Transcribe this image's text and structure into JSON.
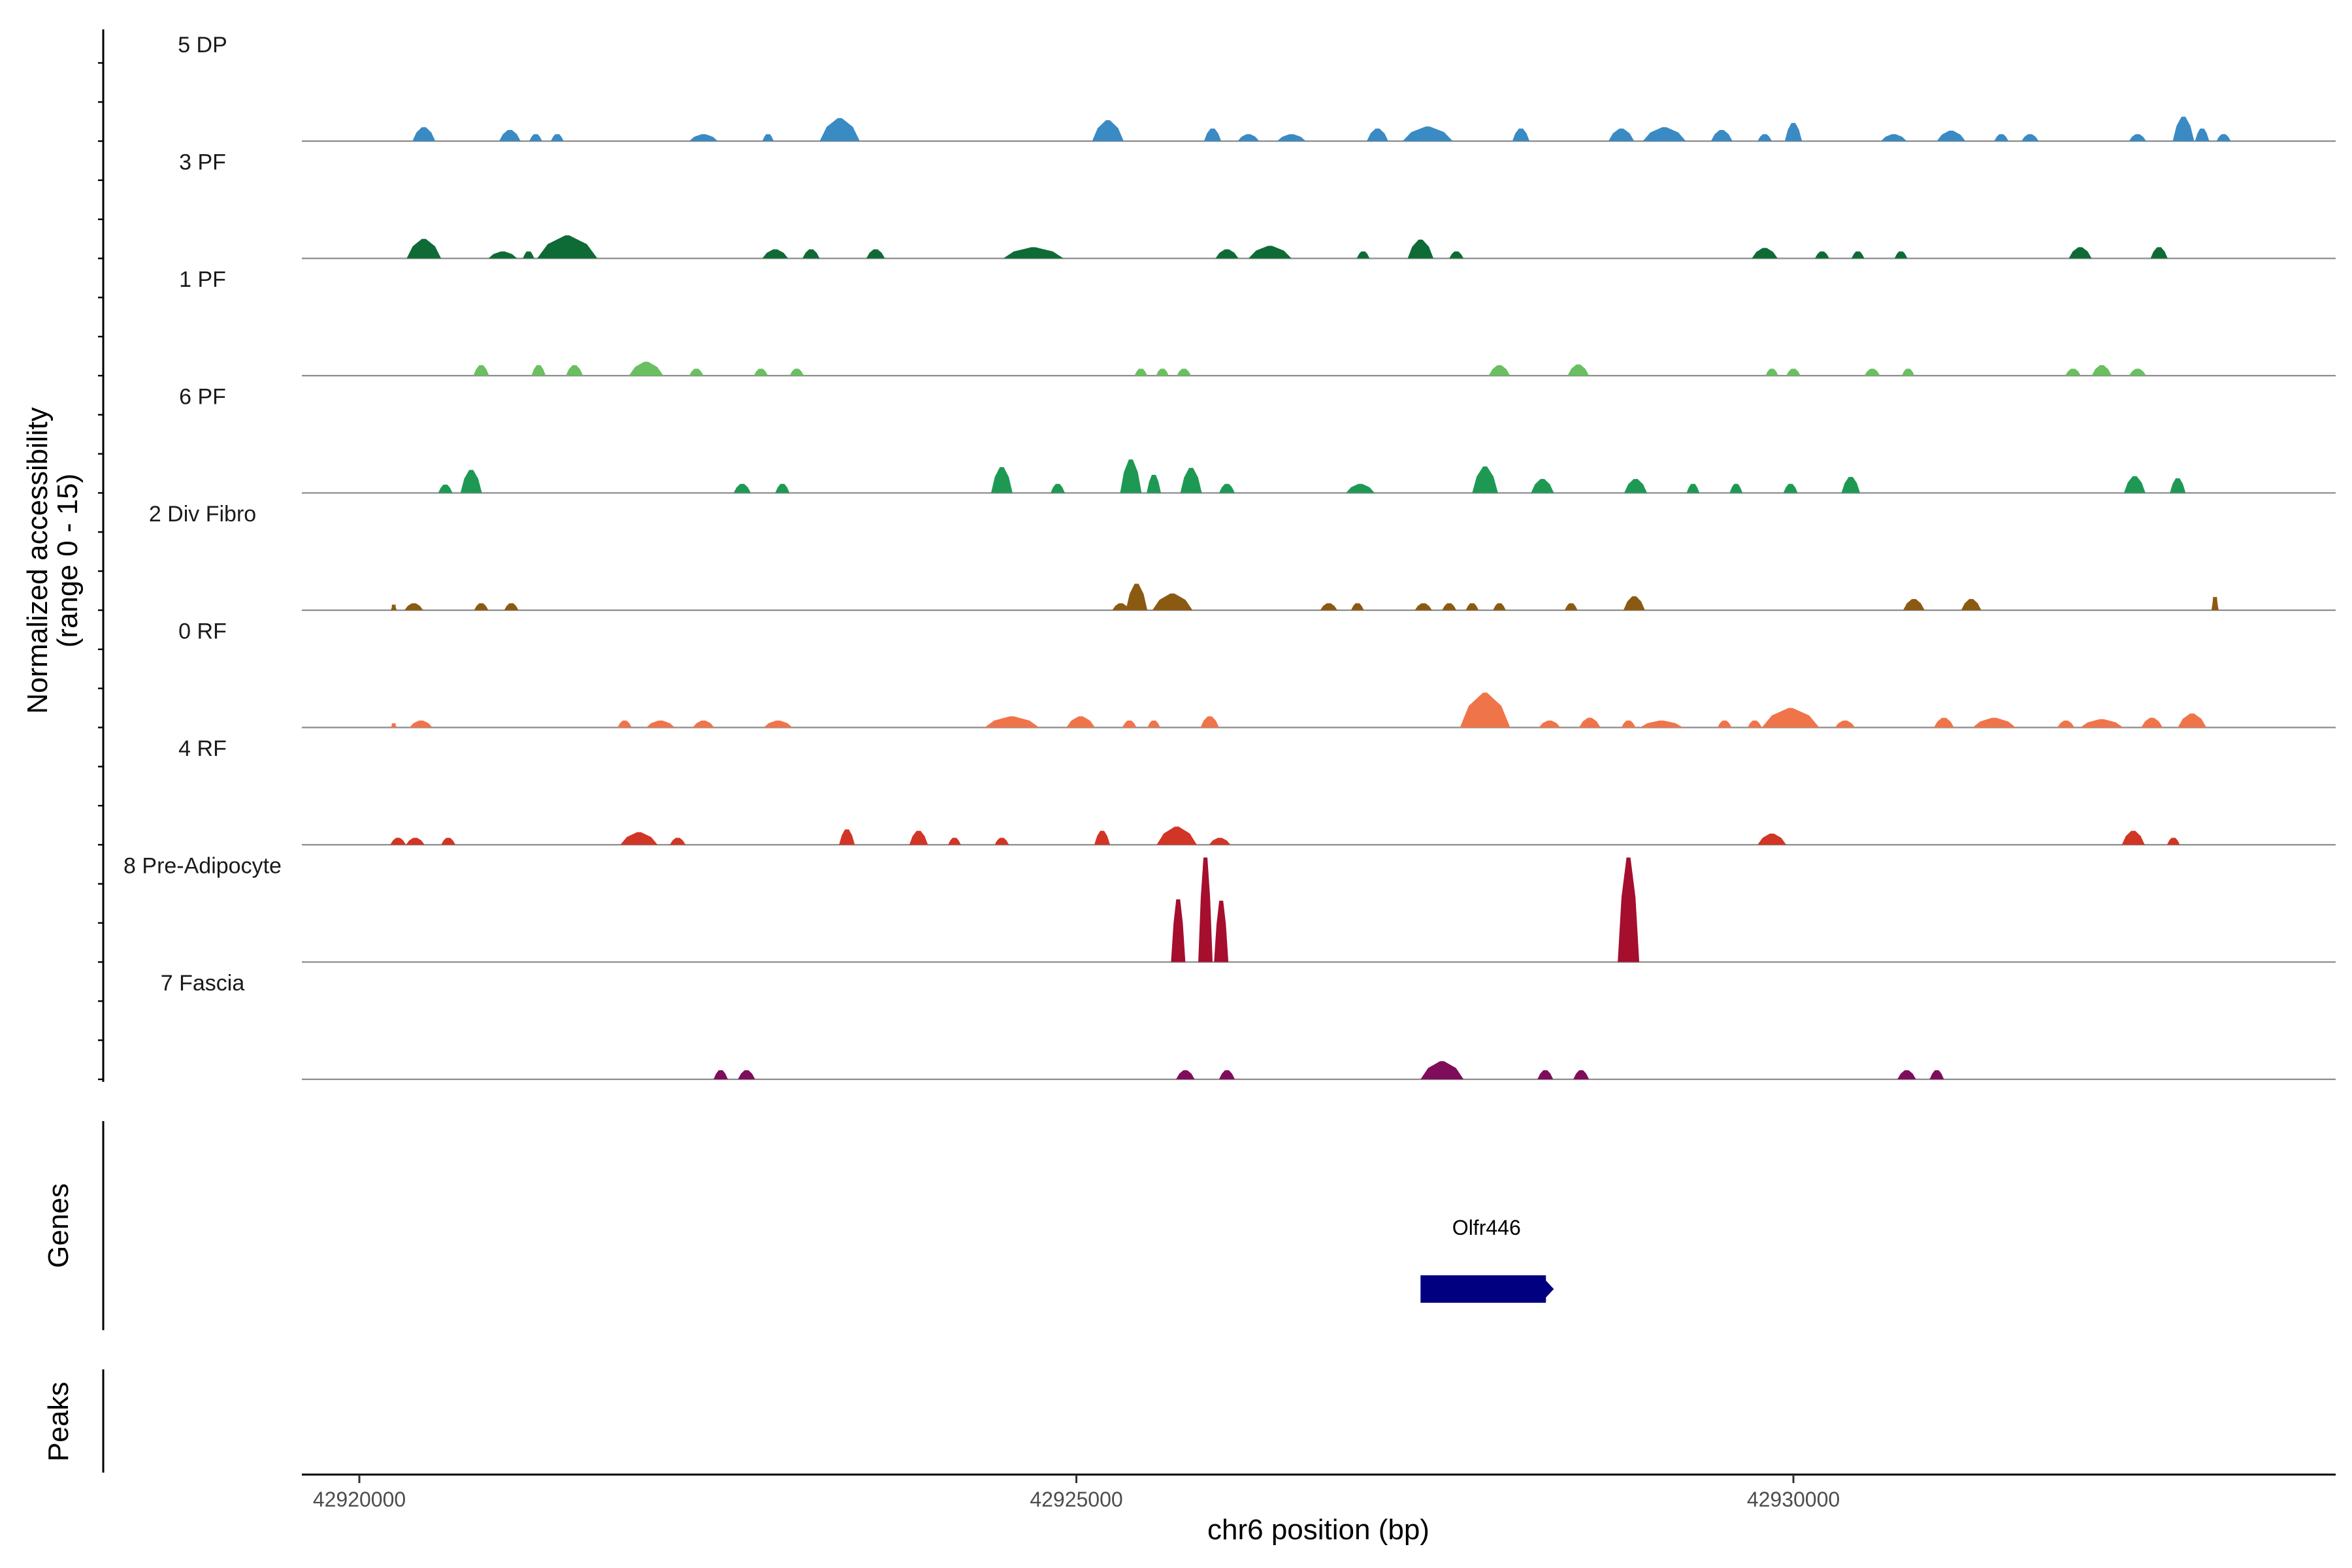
{
  "chart_data": {
    "type": "area",
    "title": "",
    "xlabel": "chr6 position (bp)",
    "ylabel_line1": "Normalized accessibility",
    "ylabel_line2": "(range 0 - 15)",
    "xlim": [
      42919600,
      42933800
    ],
    "ylim": [
      0,
      15
    ],
    "xticks": [
      42920000,
      42925000,
      42930000
    ],
    "xtick_labels": [
      "42920000",
      "42925000",
      "42930000"
    ],
    "genes_label": "Genes",
    "peaks_label": "Peaks",
    "tracks": [
      {
        "name": "5 DP",
        "color": "#3a8ac4",
        "peaks": [
          [
            42920450,
            160,
            2.0
          ],
          [
            42921050,
            150,
            1.6
          ],
          [
            42921230,
            90,
            1.0
          ],
          [
            42921380,
            90,
            1.0
          ],
          [
            42922400,
            200,
            1.0
          ],
          [
            42922850,
            80,
            1.0
          ],
          [
            42923350,
            280,
            3.3
          ],
          [
            42925220,
            220,
            3.0
          ],
          [
            42925950,
            120,
            1.8
          ],
          [
            42926200,
            150,
            1.0
          ],
          [
            42926500,
            200,
            1.0
          ],
          [
            42927100,
            150,
            1.8
          ],
          [
            42927450,
            350,
            2.1
          ],
          [
            42928100,
            120,
            1.8
          ],
          [
            42928800,
            180,
            1.8
          ],
          [
            42929100,
            300,
            2.0
          ],
          [
            42929500,
            150,
            1.6
          ],
          [
            42929800,
            100,
            1.0
          ],
          [
            42930000,
            120,
            2.6
          ],
          [
            42930700,
            180,
            1.0
          ],
          [
            42931100,
            200,
            1.5
          ],
          [
            42931450,
            100,
            1.0
          ],
          [
            42931650,
            120,
            1.0
          ],
          [
            42932400,
            120,
            1.0
          ],
          [
            42932720,
            150,
            3.5
          ],
          [
            42932850,
            100,
            1.8
          ],
          [
            42933000,
            100,
            1.0
          ]
        ]
      },
      {
        "name": "3 PF",
        "color": "#0e6b36",
        "peaks": [
          [
            42920450,
            240,
            2.8
          ],
          [
            42921000,
            200,
            1.0
          ],
          [
            42921180,
            80,
            1.0
          ],
          [
            42921450,
            420,
            3.3
          ],
          [
            42922900,
            180,
            1.3
          ],
          [
            42923150,
            120,
            1.3
          ],
          [
            42923600,
            130,
            1.3
          ],
          [
            42924700,
            420,
            1.6
          ],
          [
            42926050,
            160,
            1.3
          ],
          [
            42926350,
            300,
            1.8
          ],
          [
            42927000,
            90,
            1.0
          ],
          [
            42927400,
            180,
            2.7
          ],
          [
            42927650,
            100,
            1.0
          ],
          [
            42929800,
            180,
            1.5
          ],
          [
            42930200,
            100,
            1.0
          ],
          [
            42930450,
            90,
            1.0
          ],
          [
            42930750,
            90,
            1.0
          ],
          [
            42932000,
            160,
            1.6
          ],
          [
            42932550,
            120,
            1.6
          ]
        ]
      },
      {
        "name": "1 PF",
        "color": "#6abf60",
        "peaks": [
          [
            42920850,
            110,
            1.5
          ],
          [
            42921250,
            100,
            1.5
          ],
          [
            42921500,
            120,
            1.5
          ],
          [
            42922000,
            240,
            2.0
          ],
          [
            42922350,
            100,
            1.0
          ],
          [
            42922800,
            100,
            1.0
          ],
          [
            42923050,
            100,
            1.0
          ],
          [
            42925450,
            90,
            1.0
          ],
          [
            42925600,
            90,
            1.0
          ],
          [
            42925750,
            100,
            1.0
          ],
          [
            42927950,
            150,
            1.5
          ],
          [
            42928500,
            150,
            1.6
          ],
          [
            42929850,
            90,
            1.0
          ],
          [
            42930000,
            100,
            1.0
          ],
          [
            42930550,
            110,
            1.0
          ],
          [
            42930800,
            90,
            1.0
          ],
          [
            42931950,
            110,
            1.0
          ],
          [
            42932150,
            140,
            1.5
          ],
          [
            42932400,
            120,
            1.0
          ]
        ]
      },
      {
        "name": "6 PF",
        "color": "#1e9954",
        "peaks": [
          [
            42920600,
            100,
            1.2
          ],
          [
            42920780,
            150,
            3.3
          ],
          [
            42922670,
            120,
            1.3
          ],
          [
            42922950,
            100,
            1.3
          ],
          [
            42924480,
            150,
            3.7
          ],
          [
            42924870,
            100,
            1.3
          ],
          [
            42925380,
            150,
            4.8
          ],
          [
            42925540,
            100,
            2.6
          ],
          [
            42925800,
            150,
            3.6
          ],
          [
            42926050,
            110,
            1.3
          ],
          [
            42926980,
            200,
            1.3
          ],
          [
            42927850,
            180,
            3.8
          ],
          [
            42928250,
            160,
            2.0
          ],
          [
            42928900,
            160,
            2.0
          ],
          [
            42929300,
            90,
            1.3
          ],
          [
            42929600,
            90,
            1.3
          ],
          [
            42929980,
            100,
            1.3
          ],
          [
            42930400,
            130,
            2.3
          ],
          [
            42932380,
            150,
            2.4
          ],
          [
            42932680,
            110,
            2.1
          ]
        ]
      },
      {
        "name": "2 Div Fibro",
        "color": "#8b5a12",
        "peaks": [
          [
            42920240,
            40,
            0.8
          ],
          [
            42920380,
            130,
            1.0
          ],
          [
            42920850,
            100,
            1.0
          ],
          [
            42921060,
            100,
            1.0
          ],
          [
            42925310,
            120,
            1.0
          ],
          [
            42925420,
            150,
            3.8
          ],
          [
            42925670,
            280,
            2.4
          ],
          [
            42926760,
            120,
            1.0
          ],
          [
            42926960,
            90,
            1.0
          ],
          [
            42927420,
            120,
            1.0
          ],
          [
            42927600,
            100,
            1.0
          ],
          [
            42927760,
            90,
            1.0
          ],
          [
            42927950,
            90,
            1.0
          ],
          [
            42928450,
            90,
            1.0
          ],
          [
            42928890,
            150,
            2.0
          ],
          [
            42930840,
            150,
            1.6
          ],
          [
            42931240,
            140,
            1.6
          ],
          [
            42932940,
            50,
            1.9
          ]
        ]
      },
      {
        "name": "0 RF",
        "color": "#f0744a",
        "peaks": [
          [
            42920240,
            40,
            0.6
          ],
          [
            42920430,
            160,
            1.0
          ],
          [
            42921850,
            100,
            1.0
          ],
          [
            42922100,
            200,
            1.0
          ],
          [
            42922400,
            150,
            1.0
          ],
          [
            42922920,
            200,
            1.0
          ],
          [
            42924550,
            380,
            1.6
          ],
          [
            42925030,
            200,
            1.6
          ],
          [
            42925370,
            100,
            1.0
          ],
          [
            42925540,
            90,
            1.0
          ],
          [
            42925930,
            130,
            1.6
          ],
          [
            42927850,
            350,
            5.0
          ],
          [
            42928300,
            150,
            1.0
          ],
          [
            42928580,
            150,
            1.4
          ],
          [
            42928850,
            100,
            1.0
          ],
          [
            42929080,
            300,
            1.0
          ],
          [
            42929520,
            100,
            1.0
          ],
          [
            42929730,
            100,
            1.0
          ],
          [
            42929980,
            400,
            2.8
          ],
          [
            42930360,
            140,
            1.0
          ],
          [
            42931050,
            140,
            1.4
          ],
          [
            42931400,
            300,
            1.4
          ],
          [
            42931900,
            120,
            1.0
          ],
          [
            42932150,
            300,
            1.2
          ],
          [
            42932500,
            150,
            1.4
          ],
          [
            42932780,
            200,
            2.0
          ]
        ]
      },
      {
        "name": "4 RF",
        "color": "#d13525",
        "peaks": [
          [
            42920270,
            110,
            1.0
          ],
          [
            42920390,
            130,
            1.0
          ],
          [
            42920620,
            100,
            1.0
          ],
          [
            42921950,
            260,
            1.8
          ],
          [
            42922220,
            110,
            1.0
          ],
          [
            42923400,
            110,
            2.2
          ],
          [
            42923900,
            130,
            2.0
          ],
          [
            42924150,
            90,
            1.0
          ],
          [
            42924480,
            100,
            1.0
          ],
          [
            42925180,
            110,
            2.0
          ],
          [
            42925700,
            280,
            2.6
          ],
          [
            42926000,
            150,
            1.0
          ],
          [
            42929850,
            200,
            1.6
          ],
          [
            42932370,
            160,
            2.0
          ],
          [
            42932650,
            90,
            1.0
          ]
        ]
      },
      {
        "name": "8 Pre-Adipocyte",
        "color": "#a50f2d",
        "peaks": [
          [
            42925710,
            100,
            9.0
          ],
          [
            42925900,
            100,
            15.0
          ],
          [
            42926010,
            100,
            8.8
          ],
          [
            42928850,
            150,
            15.0
          ]
        ]
      },
      {
        "name": "7 Fascia",
        "color": "#800d5b",
        "peaks": [
          [
            42922520,
            100,
            1.3
          ],
          [
            42922700,
            120,
            1.3
          ],
          [
            42925760,
            130,
            1.3
          ],
          [
            42926050,
            110,
            1.3
          ],
          [
            42927550,
            300,
            2.6
          ],
          [
            42928270,
            110,
            1.3
          ],
          [
            42928520,
            110,
            1.3
          ],
          [
            42930790,
            130,
            1.3
          ],
          [
            42931000,
            100,
            1.3
          ]
        ]
      }
    ],
    "genes": [
      {
        "name": "Olfr446",
        "start": 42927400,
        "end": 42928320,
        "strand": "+",
        "color": "#000080"
      }
    ]
  }
}
